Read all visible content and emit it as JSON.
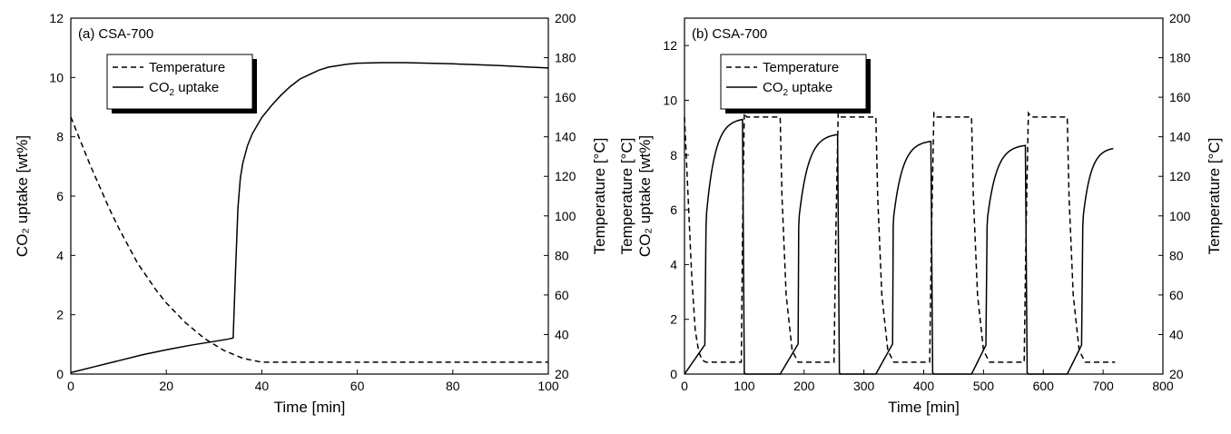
{
  "chart_data": [
    {
      "type": "line",
      "panel_label": "(a)",
      "sample": "CSA-700",
      "xlabel": "Time [min]",
      "ylabel": "CO₂ uptake [wt%]",
      "ylabel_right": "Temperature [°C]",
      "xlim": [
        0,
        100
      ],
      "ylim": [
        0,
        12
      ],
      "ylim_right": [
        20,
        200
      ],
      "xticks": [
        "0",
        "20",
        "40",
        "60",
        "80",
        "100"
      ],
      "yticks": [
        "0",
        "2",
        "4",
        "6",
        "8",
        "10",
        "12"
      ],
      "yticks_right": [
        "20",
        "40",
        "60",
        "80",
        "100",
        "120",
        "140",
        "160",
        "180",
        "200"
      ],
      "legend": {
        "position": "top-left",
        "entries": [
          {
            "name": "Temperature",
            "style": "dashed",
            "prefix": "",
            "subscript": "",
            "suffix": ""
          },
          {
            "name": "CO2 uptake",
            "style": "solid",
            "prefix": "CO",
            "subscript": "2",
            "suffix": " uptake"
          }
        ]
      },
      "series": [
        {
          "name": "Temperature",
          "axis": "right",
          "style": "dashed",
          "x": [
            0,
            2,
            4,
            6,
            8,
            10,
            12,
            14,
            16,
            18,
            20,
            22,
            24,
            26,
            28,
            30,
            32,
            34,
            36,
            38,
            40,
            50,
            60,
            70,
            80,
            90,
            100
          ],
          "y": [
            150,
            138,
            126,
            115,
            104,
            94,
            85,
            76,
            69,
            62,
            56,
            51,
            46,
            42,
            38,
            35,
            32,
            30,
            28,
            27,
            26,
            26,
            26,
            26,
            26,
            26,
            26
          ]
        },
        {
          "name": "CO2 uptake",
          "axis": "left",
          "style": "solid",
          "x": [
            0,
            5,
            10,
            15,
            20,
            25,
            30,
            33,
            34,
            34.5,
            35,
            35.5,
            36,
            37,
            38,
            40,
            42,
            44,
            46,
            48,
            50,
            52,
            54,
            56,
            58,
            60,
            65,
            70,
            75,
            80,
            85,
            90,
            95,
            100
          ],
          "y": [
            0.05,
            0.25,
            0.45,
            0.65,
            0.82,
            0.97,
            1.1,
            1.18,
            1.22,
            3.5,
            5.6,
            6.6,
            7.1,
            7.7,
            8.1,
            8.65,
            9.05,
            9.4,
            9.7,
            9.95,
            10.1,
            10.25,
            10.35,
            10.4,
            10.45,
            10.48,
            10.5,
            10.5,
            10.48,
            10.46,
            10.43,
            10.4,
            10.36,
            10.32
          ]
        }
      ]
    },
    {
      "type": "line",
      "panel_label": "(b)",
      "sample": "CSA-700",
      "xlabel": "Time [min]",
      "ylabel": "CO₂ uptake [wt%]",
      "ylabel2": "Temperature [°C]",
      "ylabel_right": "Temperature [°C]",
      "xlim": [
        0,
        800
      ],
      "ylim": [
        0,
        13
      ],
      "ylim_right": [
        20,
        200
      ],
      "xticks": [
        "0",
        "100",
        "200",
        "300",
        "400",
        "500",
        "600",
        "700",
        "800"
      ],
      "yticks": [
        "0",
        "2",
        "4",
        "6",
        "8",
        "10",
        "12"
      ],
      "yticks_right": [
        "20",
        "40",
        "60",
        "80",
        "100",
        "120",
        "140",
        "160",
        "180",
        "200"
      ],
      "legend": {
        "position": "top-left",
        "entries": [
          {
            "name": "Temperature",
            "style": "dashed",
            "prefix": "",
            "subscript": "",
            "suffix": ""
          },
          {
            "name": "CO2 uptake",
            "style": "solid",
            "prefix": "CO",
            "subscript": "2",
            "suffix": " uptake"
          }
        ]
      },
      "series": [
        {
          "name": "Temperature",
          "axis": "right",
          "style": "dashed",
          "x": [
            0,
            6,
            12,
            18,
            24,
            30,
            36,
            60,
            95,
            97,
            100,
            104,
            160,
            163,
            170,
            180,
            190,
            250,
            253,
            257,
            262,
            320,
            323,
            330,
            340,
            350,
            410,
            413,
            417,
            422,
            480,
            483,
            490,
            500,
            510,
            568,
            571,
            575,
            580,
            640,
            643,
            650,
            660,
            670,
            720
          ],
          "y": [
            150,
            110,
            70,
            42,
            31,
            27,
            26,
            26,
            26,
            90,
            152,
            150,
            150,
            110,
            60,
            32,
            26,
            26,
            90,
            152,
            150,
            150,
            110,
            60,
            32,
            26,
            26,
            90,
            152,
            150,
            150,
            110,
            60,
            32,
            26,
            26,
            90,
            152,
            150,
            150,
            110,
            60,
            32,
            26,
            26
          ]
        }
      ]
    }
  ]
}
